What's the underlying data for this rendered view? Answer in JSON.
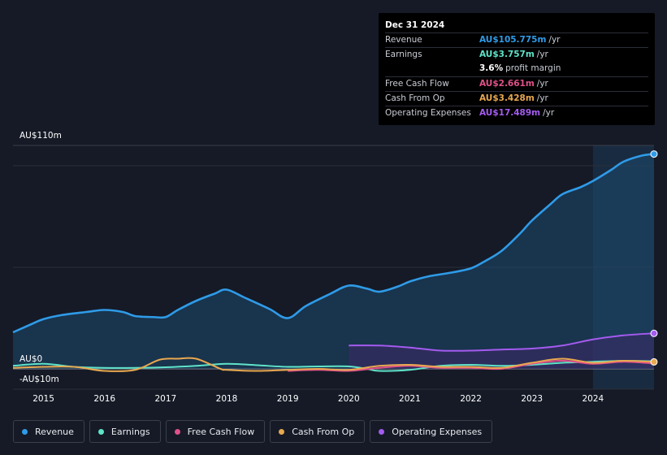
{
  "tooltip": {
    "date": "Dec 31 2024",
    "rows": [
      {
        "label": "Revenue",
        "value": "AU$105.775m",
        "unit": "/yr",
        "color": "#2f9be8"
      },
      {
        "label": "Earnings",
        "value": "AU$3.757m",
        "unit": "/yr",
        "color": "#5fe3c9"
      },
      {
        "label": "",
        "value": "3.6%",
        "unit": "profit margin",
        "color": "#ffffff"
      },
      {
        "label": "Free Cash Flow",
        "value": "AU$2.661m",
        "unit": "/yr",
        "color": "#e0508a"
      },
      {
        "label": "Cash From Op",
        "value": "AU$3.428m",
        "unit": "/yr",
        "color": "#e8a84f"
      },
      {
        "label": "Operating Expenses",
        "value": "AU$17.489m",
        "unit": "/yr",
        "color": "#a45bf0"
      }
    ]
  },
  "legend": [
    {
      "label": "Revenue",
      "color": "#2f9be8"
    },
    {
      "label": "Earnings",
      "color": "#5fe3c9"
    },
    {
      "label": "Free Cash Flow",
      "color": "#e0508a"
    },
    {
      "label": "Cash From Op",
      "color": "#e8a84f"
    },
    {
      "label": "Operating Expenses",
      "color": "#a45bf0"
    }
  ],
  "chart_data": {
    "type": "line",
    "title": "",
    "xlabel": "",
    "ylabel": "",
    "ylim": [
      -10,
      110
    ],
    "xlim": [
      2014.5,
      2025.0
    ],
    "y_tick_labels": [
      "AU$110m",
      "AU$0",
      "-AU$10m"
    ],
    "x_tick_labels": [
      "2015",
      "2016",
      "2017",
      "2018",
      "2019",
      "2020",
      "2021",
      "2022",
      "2023",
      "2024"
    ],
    "x_ticks": [
      2015,
      2016,
      2017,
      2018,
      2019,
      2020,
      2021,
      2022,
      2023,
      2024
    ],
    "highlight_from": 2024.0,
    "series": [
      {
        "name": "Revenue",
        "color": "#2f9be8",
        "fill": true,
        "x": [
          2014.5,
          2014.8,
          2015.0,
          2015.3,
          2015.7,
          2016.0,
          2016.3,
          2016.5,
          2016.8,
          2017.0,
          2017.2,
          2017.5,
          2017.8,
          2018.0,
          2018.3,
          2018.7,
          2019.0,
          2019.3,
          2019.7,
          2020.0,
          2020.3,
          2020.5,
          2020.8,
          2021.0,
          2021.3,
          2021.7,
          2022.0,
          2022.2,
          2022.5,
          2022.8,
          2023.0,
          2023.3,
          2023.5,
          2023.8,
          2024.0,
          2024.3,
          2024.5,
          2024.8,
          2025.0
        ],
        "y": [
          18,
          22,
          24.5,
          26.5,
          28,
          29,
          28,
          26,
          25.5,
          25.5,
          29,
          33.5,
          37,
          39,
          35,
          29.5,
          25,
          31,
          37,
          41,
          39.5,
          38,
          40.5,
          43,
          45.5,
          47.5,
          49.5,
          52.5,
          58,
          66.5,
          73,
          81,
          86,
          89.5,
          92.5,
          98,
          102,
          105,
          105.775
        ]
      },
      {
        "name": "Earnings",
        "color": "#5fe3c9",
        "fill": false,
        "x": [
          2014.5,
          2015.0,
          2015.5,
          2016.0,
          2016.5,
          2017.0,
          2017.5,
          2018.0,
          2018.5,
          2019.0,
          2019.5,
          2020.0,
          2020.3,
          2020.5,
          2021.0,
          2021.5,
          2022.0,
          2022.5,
          2023.0,
          2023.5,
          2024.0,
          2024.5,
          2025.0
        ],
        "y": [
          1.5,
          2.5,
          1,
          0.5,
          0.5,
          0.8,
          1.5,
          2.5,
          1.8,
          1,
          1.2,
          1.2,
          0,
          -1,
          -0.5,
          1.5,
          2,
          1.5,
          2,
          3,
          3.5,
          4,
          3.757
        ]
      },
      {
        "name": "Free Cash Flow",
        "color": "#e0508a",
        "fill": false,
        "x": [
          2019.0,
          2019.5,
          2020.0,
          2020.5,
          2021.0,
          2021.5,
          2022.0,
          2022.5,
          2023.0,
          2023.5,
          2024.0,
          2024.5,
          2025.0
        ],
        "y": [
          -1,
          -0.5,
          -1,
          0.5,
          1.5,
          0.5,
          0.5,
          0,
          2.5,
          4,
          2.5,
          3.5,
          2.661
        ]
      },
      {
        "name": "Cash From Op",
        "color": "#e8a84f",
        "fill": false,
        "x": [
          2014.5,
          2015.0,
          2015.5,
          2016.0,
          2016.5,
          2016.9,
          2017.2,
          2017.5,
          2017.9,
          2018.0,
          2018.5,
          2019.0,
          2019.5,
          2020.0,
          2020.5,
          2021.0,
          2021.5,
          2022.0,
          2022.5,
          2023.0,
          2023.5,
          2024.0,
          2024.5,
          2025.0
        ],
        "y": [
          0.5,
          1,
          1,
          -1,
          -0.5,
          4.5,
          5,
          5,
          0,
          -0.5,
          -1,
          -0.5,
          0,
          -0.5,
          1.5,
          2,
          1,
          1,
          0.5,
          3,
          5,
          3,
          4,
          3.428
        ]
      },
      {
        "name": "Operating Expenses",
        "color": "#a45bf0",
        "fill": true,
        "x": [
          2020.0,
          2020.5,
          2021.0,
          2021.5,
          2022.0,
          2022.5,
          2023.0,
          2023.5,
          2024.0,
          2024.5,
          2025.0
        ],
        "y": [
          11.5,
          11.5,
          10.5,
          9,
          9,
          9.5,
          10,
          11.5,
          14.5,
          16.5,
          17.489
        ]
      }
    ]
  }
}
